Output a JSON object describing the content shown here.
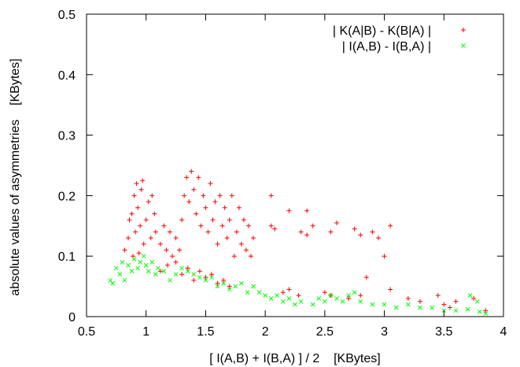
{
  "chart_data": {
    "type": "scatter",
    "title": "",
    "xlabel": "[ I(A,B) + I(B,A) ] / 2    [KBytes]",
    "ylabel": "absolute values of asymmetries    [KBytes]",
    "xlim": [
      0.5,
      4
    ],
    "ylim": [
      0,
      0.5
    ],
    "xticks": [
      "0.5",
      "1",
      "1.5",
      "2",
      "2.5",
      "3",
      "3.5",
      "4"
    ],
    "yticks": [
      "0",
      "0.1",
      "0.2",
      "0.3",
      "0.4",
      "0.5"
    ],
    "grid": false,
    "legend_position": "top-right",
    "series": [
      {
        "name": "| K(A|B) - K(B|A) |",
        "marker": "+",
        "color": "#ff0000",
        "points": [
          [
            0.82,
            0.11
          ],
          [
            0.85,
            0.13
          ],
          [
            0.86,
            0.16
          ],
          [
            0.88,
            0.17
          ],
          [
            0.9,
            0.2
          ],
          [
            0.91,
            0.14
          ],
          [
            0.93,
            0.18
          ],
          [
            0.95,
            0.15
          ],
          [
            0.96,
            0.21
          ],
          [
            0.98,
            0.12
          ],
          [
            1.0,
            0.16
          ],
          [
            1.02,
            0.19
          ],
          [
            1.04,
            0.13
          ],
          [
            1.05,
            0.2
          ],
          [
            1.07,
            0.17
          ],
          [
            0.92,
            0.22
          ],
          [
            0.97,
            0.225
          ],
          [
            0.89,
            0.1
          ],
          [
            0.94,
            0.105
          ],
          [
            1.08,
            0.14
          ],
          [
            1.12,
            0.12
          ],
          [
            1.15,
            0.15
          ],
          [
            1.17,
            0.11
          ],
          [
            1.2,
            0.14
          ],
          [
            1.22,
            0.1
          ],
          [
            1.25,
            0.13
          ],
          [
            1.28,
            0.11
          ],
          [
            1.3,
            0.16
          ],
          [
            1.32,
            0.2
          ],
          [
            1.34,
            0.23
          ],
          [
            1.36,
            0.19
          ],
          [
            1.38,
            0.24
          ],
          [
            1.4,
            0.21
          ],
          [
            1.42,
            0.17
          ],
          [
            1.44,
            0.23
          ],
          [
            1.46,
            0.15
          ],
          [
            1.48,
            0.2
          ],
          [
            1.5,
            0.18
          ],
          [
            1.52,
            0.14
          ],
          [
            1.54,
            0.22
          ],
          [
            1.56,
            0.16
          ],
          [
            1.58,
            0.19
          ],
          [
            1.6,
            0.12
          ],
          [
            1.62,
            0.2
          ],
          [
            1.64,
            0.15
          ],
          [
            1.66,
            0.18
          ],
          [
            1.68,
            0.13
          ],
          [
            1.7,
            0.16
          ],
          [
            1.72,
            0.2
          ],
          [
            1.74,
            0.1
          ],
          [
            1.76,
            0.14
          ],
          [
            1.78,
            0.18
          ],
          [
            1.8,
            0.12
          ],
          [
            1.82,
            0.16
          ],
          [
            1.84,
            0.11
          ],
          [
            1.86,
            0.15
          ],
          [
            1.88,
            0.1
          ],
          [
            1.9,
            0.13
          ],
          [
            1.3,
            0.07
          ],
          [
            1.35,
            0.08
          ],
          [
            1.4,
            0.06
          ],
          [
            1.45,
            0.075
          ],
          [
            1.5,
            0.065
          ],
          [
            1.55,
            0.07
          ],
          [
            1.6,
            0.055
          ],
          [
            1.65,
            0.06
          ],
          [
            1.7,
            0.05
          ],
          [
            1.12,
            0.075
          ],
          [
            1.18,
            0.085
          ],
          [
            1.25,
            0.09
          ],
          [
            2.05,
            0.2
          ],
          [
            2.05,
            0.15
          ],
          [
            2.08,
            0.145
          ],
          [
            2.3,
            0.14
          ],
          [
            2.35,
            0.135
          ],
          [
            2.4,
            0.15
          ],
          [
            2.2,
            0.175
          ],
          [
            2.35,
            0.175
          ],
          [
            2.55,
            0.14
          ],
          [
            2.6,
            0.155
          ],
          [
            2.75,
            0.145
          ],
          [
            2.8,
            0.135
          ],
          [
            2.9,
            0.14
          ],
          [
            2.95,
            0.13
          ],
          [
            3.0,
            0.1
          ],
          [
            3.05,
            0.15
          ],
          [
            2.15,
            0.04
          ],
          [
            2.2,
            0.045
          ],
          [
            2.28,
            0.035
          ],
          [
            2.5,
            0.04
          ],
          [
            2.55,
            0.035
          ],
          [
            2.7,
            0.03
          ],
          [
            2.8,
            0.035
          ],
          [
            3.05,
            0.045
          ],
          [
            3.2,
            0.03
          ],
          [
            3.3,
            0.025
          ],
          [
            3.5,
            0.02
          ],
          [
            3.55,
            0.015
          ],
          [
            3.6,
            0.025
          ],
          [
            3.75,
            0.03
          ],
          [
            3.85,
            0.01
          ],
          [
            2.85,
            0.065
          ],
          [
            3.45,
            0.035
          ]
        ]
      },
      {
        "name": "| I(A,B) - I(B,A) |",
        "marker": "x",
        "color": "#00ff00",
        "points": [
          [
            0.72,
            0.055
          ],
          [
            0.75,
            0.08
          ],
          [
            0.78,
            0.07
          ],
          [
            0.8,
            0.09
          ],
          [
            0.82,
            0.06
          ],
          [
            0.85,
            0.085
          ],
          [
            0.88,
            0.075
          ],
          [
            0.9,
            0.095
          ],
          [
            0.93,
            0.08
          ],
          [
            0.95,
            0.09
          ],
          [
            0.98,
            0.1
          ],
          [
            1.0,
            0.085
          ],
          [
            1.02,
            0.075
          ],
          [
            1.05,
            0.09
          ],
          [
            1.08,
            0.07
          ],
          [
            1.1,
            0.08
          ],
          [
            1.15,
            0.075
          ],
          [
            1.2,
            0.06
          ],
          [
            1.25,
            0.07
          ],
          [
            1.3,
            0.08
          ],
          [
            1.35,
            0.075
          ],
          [
            1.4,
            0.07
          ],
          [
            1.45,
            0.065
          ],
          [
            1.5,
            0.06
          ],
          [
            1.55,
            0.065
          ],
          [
            1.6,
            0.05
          ],
          [
            1.65,
            0.055
          ],
          [
            1.7,
            0.045
          ],
          [
            1.75,
            0.05
          ],
          [
            1.8,
            0.055
          ],
          [
            1.85,
            0.04
          ],
          [
            1.9,
            0.05
          ],
          [
            1.95,
            0.04
          ],
          [
            2.0,
            0.035
          ],
          [
            2.05,
            0.03
          ],
          [
            2.1,
            0.035
          ],
          [
            2.15,
            0.025
          ],
          [
            2.2,
            0.03
          ],
          [
            2.25,
            0.02
          ],
          [
            2.3,
            0.025
          ],
          [
            2.4,
            0.02
          ],
          [
            2.5,
            0.025
          ],
          [
            2.55,
            0.035
          ],
          [
            2.6,
            0.03
          ],
          [
            2.65,
            0.025
          ],
          [
            2.7,
            0.035
          ],
          [
            2.8,
            0.025
          ],
          [
            2.9,
            0.02
          ],
          [
            3.0,
            0.02
          ],
          [
            3.1,
            0.015
          ],
          [
            3.2,
            0.02
          ],
          [
            3.3,
            0.015
          ],
          [
            3.4,
            0.015
          ],
          [
            3.5,
            0.01
          ],
          [
            3.6,
            0.01
          ],
          [
            3.7,
            0.012
          ],
          [
            3.8,
            0.008
          ],
          [
            3.85,
            0.005
          ],
          [
            3.72,
            0.035
          ],
          [
            3.78,
            0.025
          ],
          [
            0.7,
            0.06
          ],
          [
            2.45,
            0.03
          ],
          [
            2.75,
            0.04
          ]
        ]
      }
    ]
  }
}
